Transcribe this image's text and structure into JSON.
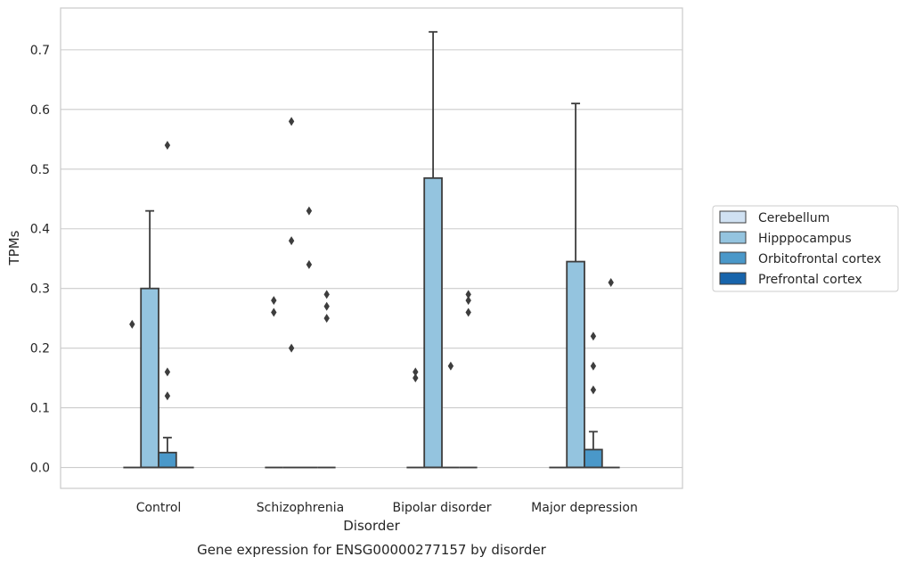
{
  "chart_data": {
    "type": "box",
    "xlabel": "Disorder",
    "ylabel": "TPMs",
    "caption": "Gene expression for ENSG00000277157 by disorder",
    "ylim": [
      -0.035,
      0.77
    ],
    "yticks": [
      "0.0",
      "0.1",
      "0.2",
      "0.3",
      "0.4",
      "0.5",
      "0.6",
      "0.7"
    ],
    "grid": "horizontal",
    "legend_position": "right",
    "categories": [
      "Control",
      "Schizophrenia",
      "Bipolar disorder",
      "Major depression"
    ],
    "series": [
      {
        "name": "Cerebellum",
        "color": "#d0e1f2"
      },
      {
        "name": "Hipppocampus",
        "color": "#94c4df"
      },
      {
        "name": "Orbitofrontal cortex",
        "color": "#4a98c9"
      },
      {
        "name": "Prefrontal cortex",
        "color": "#1764ab"
      }
    ],
    "boxes": [
      {
        "category": "Control",
        "series": "Cerebellum",
        "q1": 0,
        "median": 0,
        "q3": 0,
        "whisker_low": 0,
        "whisker_high": 0,
        "outliers": [
          0.24
        ]
      },
      {
        "category": "Control",
        "series": "Hipppocampus",
        "q1": 0,
        "median": 0,
        "q3": 0.3,
        "whisker_low": 0,
        "whisker_high": 0.43,
        "outliers": []
      },
      {
        "category": "Control",
        "series": "Orbitofrontal cortex",
        "q1": 0,
        "median": 0,
        "q3": 0.025,
        "whisker_low": 0,
        "whisker_high": 0.05,
        "outliers": [
          0.54,
          0.16,
          0.12
        ]
      },
      {
        "category": "Control",
        "series": "Prefrontal cortex",
        "q1": 0,
        "median": 0,
        "q3": 0,
        "whisker_low": 0,
        "whisker_high": 0,
        "outliers": []
      },
      {
        "category": "Schizophrenia",
        "series": "Cerebellum",
        "q1": 0,
        "median": 0,
        "q3": 0,
        "whisker_low": 0,
        "whisker_high": 0,
        "outliers": [
          0.28,
          0.26
        ]
      },
      {
        "category": "Schizophrenia",
        "series": "Hipppocampus",
        "q1": 0,
        "median": 0,
        "q3": 0,
        "whisker_low": 0,
        "whisker_high": 0,
        "outliers": [
          0.58,
          0.38,
          0.2
        ]
      },
      {
        "category": "Schizophrenia",
        "series": "Orbitofrontal cortex",
        "q1": 0,
        "median": 0,
        "q3": 0,
        "whisker_low": 0,
        "whisker_high": 0,
        "outliers": [
          0.43,
          0.34
        ]
      },
      {
        "category": "Schizophrenia",
        "series": "Prefrontal cortex",
        "q1": 0,
        "median": 0,
        "q3": 0,
        "whisker_low": 0,
        "whisker_high": 0,
        "outliers": [
          0.29,
          0.27,
          0.25
        ]
      },
      {
        "category": "Bipolar disorder",
        "series": "Cerebellum",
        "q1": 0,
        "median": 0,
        "q3": 0,
        "whisker_low": 0,
        "whisker_high": 0,
        "outliers": [
          0.16,
          0.15
        ]
      },
      {
        "category": "Bipolar disorder",
        "series": "Hipppocampus",
        "q1": 0,
        "median": 0,
        "q3": 0.485,
        "whisker_low": 0,
        "whisker_high": 0.73,
        "outliers": []
      },
      {
        "category": "Bipolar disorder",
        "series": "Orbitofrontal cortex",
        "q1": 0,
        "median": 0,
        "q3": 0,
        "whisker_low": 0,
        "whisker_high": 0,
        "outliers": [
          0.17
        ]
      },
      {
        "category": "Bipolar disorder",
        "series": "Prefrontal cortex",
        "q1": 0,
        "median": 0,
        "q3": 0,
        "whisker_low": 0,
        "whisker_high": 0,
        "outliers": [
          0.29,
          0.28,
          0.26
        ]
      },
      {
        "category": "Major depression",
        "series": "Cerebellum",
        "q1": 0,
        "median": 0,
        "q3": 0,
        "whisker_low": 0,
        "whisker_high": 0,
        "outliers": []
      },
      {
        "category": "Major depression",
        "series": "Hipppocampus",
        "q1": 0,
        "median": 0,
        "q3": 0.345,
        "whisker_low": 0,
        "whisker_high": 0.61,
        "outliers": []
      },
      {
        "category": "Major depression",
        "series": "Orbitofrontal cortex",
        "q1": 0,
        "median": 0,
        "q3": 0.03,
        "whisker_low": 0,
        "whisker_high": 0.06,
        "outliers": [
          0.22,
          0.17,
          0.13
        ]
      },
      {
        "category": "Major depression",
        "series": "Prefrontal cortex",
        "q1": 0,
        "median": 0,
        "q3": 0,
        "whisker_low": 0,
        "whisker_high": 0,
        "outliers": [
          0.31
        ]
      }
    ]
  }
}
